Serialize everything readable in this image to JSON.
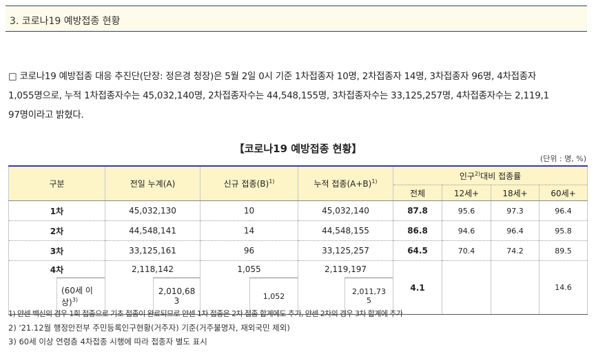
{
  "section": {
    "title": "3. 코로나19 예방접종 현황"
  },
  "paragraph": {
    "bullet": "□",
    "line1": "코로나19 예방접종 대응 추진단(단장: 정은경 청장)은 5월 2일 0시 기준 1차접종자 10명, 2차접종자 14명, 3차접종자 96명, 4차접종자",
    "line2": "1,055명으로, 누적 1차접종자수는 45,032,140명, 2차접종자수는 44,548,155명, 3차접종자수는 33,125,257명, 4차접종자수는 2,119,1",
    "line3": "97명이라고 밝혔다."
  },
  "table": {
    "title": "【코로나19 예방접종 현황】",
    "unit": "(단위 : 명, %)",
    "headers": {
      "category": "구분",
      "prev_total": "전일 누계(A)",
      "new_label": "신규 접종(B)",
      "new_sup": "1)",
      "cum_label": "누적 접종(A+B)",
      "cum_sup": "1)",
      "ratio_label_pre": "인구",
      "ratio_sup": "2)",
      "ratio_label_post": "대비 접종률",
      "all": "전체",
      "age12": "12세+",
      "age18": "18세+",
      "age60": "60세+"
    },
    "rows": [
      {
        "label": "1차",
        "prev": "45,032,130",
        "new": "10",
        "cum": "45,032,140",
        "all": "87.8",
        "a12": "95.6",
        "a18": "97.3",
        "a60": "96.4"
      },
      {
        "label": "2차",
        "prev": "44,548,141",
        "new": "14",
        "cum": "44,548,155",
        "all": "86.8",
        "a12": "94.6",
        "a18": "96.4",
        "a60": "95.8"
      },
      {
        "label": "3차",
        "prev": "33,125,161",
        "new": "96",
        "cum": "33,125,257",
        "all": "64.5",
        "a12": "70.4",
        "a18": "74.2",
        "a60": "89.5"
      },
      {
        "label": "4차",
        "prev": "2,118,142",
        "new": "1,055",
        "cum": "2,119,197",
        "all": "4.1",
        "a60": "14.6"
      }
    ],
    "sub_row": {
      "label_line1": "(60세 이",
      "label_line2": "상)",
      "label_sup": "3)",
      "prev_line1": "2,010,68",
      "prev_line2": "3",
      "new": "1,052",
      "cum_line1": "2,011,73",
      "cum_line2": "5"
    }
  },
  "notes": [
    "1) 얀센 백신의 경우 1회 접종으로 기초 접종이 완료되므로 얀센 1차 접종은 2차 접종 합계에도 추가, 얀센 2차의 경우 3차 합계에 추가",
    "2) '21.12월 행정안전부 주민등록인구현황(거주자) 기준(거주불명자, 재외국민 제외)",
    "3) 60세 이상 연령층 4차접종 시행에 따라 접종자 별도 표시"
  ]
}
